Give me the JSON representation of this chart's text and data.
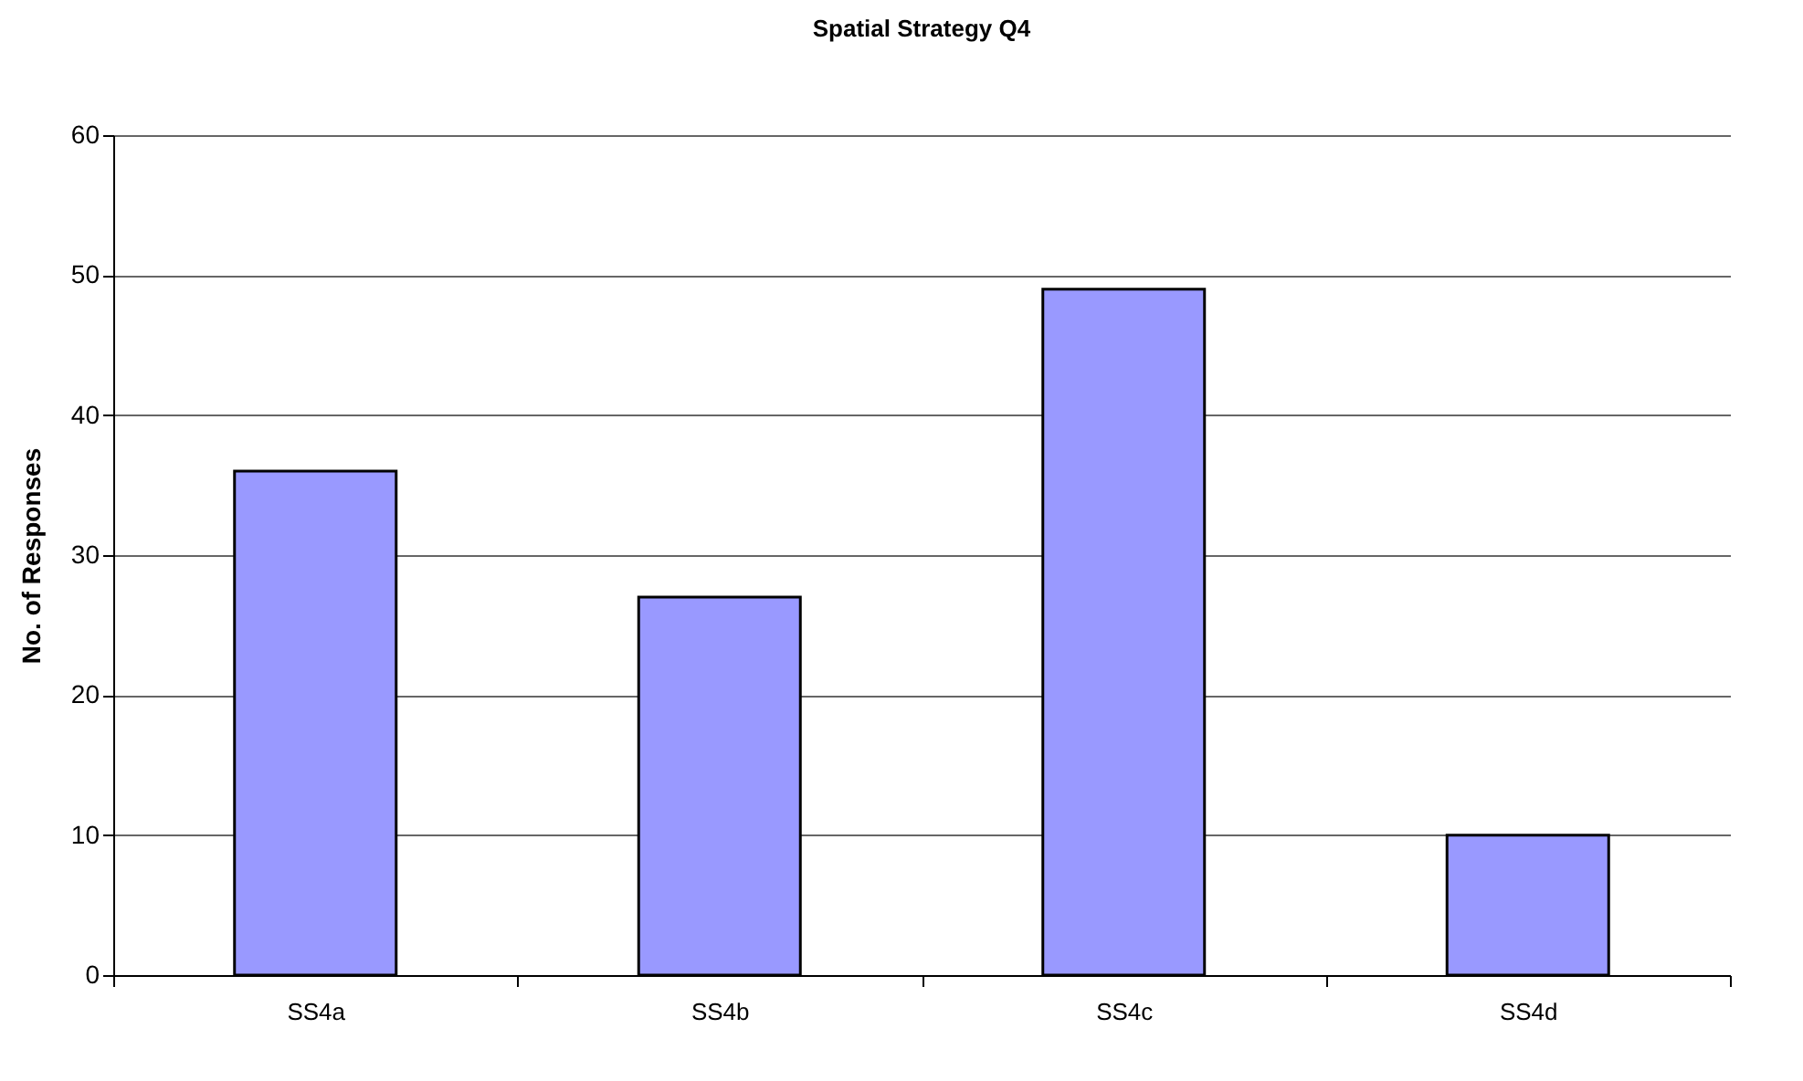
{
  "chart_data": {
    "type": "bar",
    "title": "Spatial Strategy Q4",
    "ylabel": "No. of Responses",
    "categories": [
      "SS4a",
      "SS4b",
      "SS4c",
      "SS4d"
    ],
    "values": [
      36,
      27,
      49,
      10
    ],
    "color": "#9999ff",
    "ylim": [
      0,
      60
    ],
    "yticks": [
      0,
      10,
      20,
      30,
      40,
      50,
      60
    ],
    "grid": "y"
  }
}
